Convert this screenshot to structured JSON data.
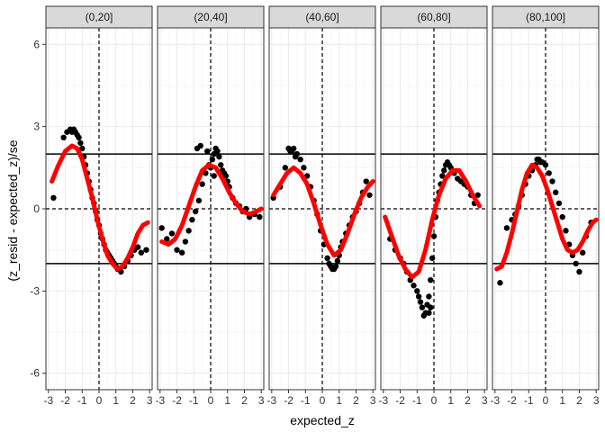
{
  "chart_data": {
    "type": "scatter",
    "xlabel": "expected_z",
    "ylabel": "(z_resid - expected_z)/se",
    "xlim": [
      -3.15,
      3.15
    ],
    "ylim": [
      -6.6,
      6.6
    ],
    "x_ticks": [
      -3,
      -2,
      -1,
      0,
      1,
      2,
      3
    ],
    "y_ticks": [
      6,
      3,
      0,
      -3,
      -6
    ],
    "hlines_solid": [
      2,
      -2
    ],
    "hline_dashed": 0,
    "vline_dashed": 0,
    "grid": true,
    "point_color": "#000000",
    "curve_color": "#ff0000",
    "strip_color": "#d9d9d9",
    "panels": [
      {
        "label": "(0,20]",
        "curve": {
          "x": [
            -2.8,
            -2.4,
            -2.0,
            -1.6,
            -1.3,
            -1.0,
            -0.7,
            -0.4,
            -0.1,
            0.2,
            0.5,
            0.8,
            1.1,
            1.4,
            1.7,
            2.0,
            2.3,
            2.6,
            2.9
          ],
          "y": [
            1.0,
            1.6,
            2.1,
            2.3,
            2.2,
            1.8,
            1.1,
            0.4,
            -0.4,
            -1.1,
            -1.7,
            -2.0,
            -2.2,
            -2.1,
            -1.8,
            -1.4,
            -0.9,
            -0.6,
            -0.5
          ]
        },
        "points": {
          "x": [
            -2.7,
            -2.1,
            -1.9,
            -1.7,
            -1.6,
            -1.5,
            -1.4,
            -1.3,
            -1.2,
            -1.1,
            -1.0,
            -0.9,
            -0.8,
            -0.7,
            -0.6,
            -0.5,
            -0.4,
            -0.3,
            -0.2,
            -0.1,
            0.0,
            0.1,
            0.2,
            0.3,
            0.4,
            0.5,
            0.6,
            0.7,
            0.8,
            0.9,
            1.0,
            1.1,
            1.2,
            1.3,
            1.5,
            1.7,
            1.9,
            2.1,
            2.3,
            2.5,
            2.8
          ],
          "y": [
            0.4,
            2.6,
            2.8,
            2.9,
            2.8,
            2.9,
            2.8,
            2.7,
            2.6,
            2.4,
            2.2,
            1.9,
            1.6,
            1.3,
            1.0,
            0.7,
            0.4,
            0.2,
            -0.1,
            -0.4,
            -0.6,
            -0.9,
            -1.1,
            -1.3,
            -1.5,
            -1.6,
            -1.7,
            -1.8,
            -1.9,
            -2.0,
            -2.1,
            -2.2,
            -2.2,
            -2.3,
            -2.1,
            -1.9,
            -1.7,
            -1.5,
            -1.4,
            -1.6,
            -1.5
          ]
        }
      },
      {
        "label": "(20,40]",
        "curve": {
          "x": [
            -2.9,
            -2.5,
            -2.1,
            -1.7,
            -1.3,
            -0.9,
            -0.5,
            -0.1,
            0.3,
            0.7,
            1.1,
            1.5,
            1.9,
            2.3,
            2.7,
            3.0
          ],
          "y": [
            -1.2,
            -1.3,
            -1.1,
            -0.6,
            0.1,
            0.8,
            1.4,
            1.6,
            1.5,
            1.1,
            0.6,
            0.2,
            -0.1,
            -0.2,
            -0.1,
            0.0
          ]
        },
        "points": {
          "x": [
            -2.9,
            -2.6,
            -2.3,
            -2.0,
            -1.7,
            -1.5,
            -1.3,
            -1.1,
            -0.9,
            -0.7,
            -0.5,
            -0.3,
            -0.1,
            0.0,
            0.1,
            0.2,
            0.3,
            0.4,
            0.5,
            0.6,
            0.7,
            0.8,
            0.9,
            1.0,
            1.1,
            1.3,
            1.5,
            1.7,
            1.9,
            2.1,
            2.3,
            2.6,
            2.9,
            -0.8,
            -0.6,
            -0.2,
            0.2
          ],
          "y": [
            -0.7,
            -1.1,
            -0.9,
            -1.5,
            -1.6,
            -1.2,
            -0.8,
            -0.4,
            -0.1,
            0.3,
            0.9,
            1.3,
            1.6,
            1.5,
            1.8,
            2.0,
            2.2,
            2.1,
            1.9,
            1.6,
            1.4,
            1.3,
            1.2,
            1.0,
            0.8,
            0.4,
            0.2,
            0.1,
            -0.1,
            0.0,
            -0.3,
            -0.2,
            -0.3,
            2.2,
            2.3,
            2.1,
            1.2
          ]
        }
      },
      {
        "label": "(40,60]",
        "curve": {
          "x": [
            -2.9,
            -2.5,
            -2.1,
            -1.7,
            -1.3,
            -0.9,
            -0.5,
            -0.1,
            0.3,
            0.7,
            1.1,
            1.5,
            1.9,
            2.3,
            2.7,
            3.0
          ],
          "y": [
            0.5,
            0.9,
            1.3,
            1.5,
            1.3,
            0.9,
            0.2,
            -0.6,
            -1.3,
            -1.7,
            -1.5,
            -0.9,
            -0.2,
            0.4,
            0.8,
            1.0
          ]
        },
        "points": {
          "x": [
            -2.9,
            -2.5,
            -2.2,
            -1.9,
            -1.7,
            -1.5,
            -1.3,
            -1.1,
            -0.9,
            -0.7,
            -0.5,
            -0.3,
            -0.1,
            0.1,
            0.3,
            0.4,
            0.5,
            0.6,
            0.7,
            0.8,
            0.9,
            1.0,
            1.1,
            1.2,
            1.4,
            1.6,
            1.8,
            2.0,
            2.2,
            2.4,
            2.6,
            2.8,
            -2.0,
            -1.8,
            -1.6
          ],
          "y": [
            0.4,
            0.8,
            1.5,
            2.1,
            2.2,
            2.0,
            1.8,
            1.5,
            1.2,
            0.8,
            0.3,
            -0.2,
            -0.8,
            -1.3,
            -1.8,
            -2.0,
            -2.1,
            -2.2,
            -2.2,
            -2.1,
            -1.9,
            -1.7,
            -1.4,
            -1.2,
            -0.9,
            -0.6,
            -0.3,
            -0.1,
            0.2,
            0.6,
            1.0,
            0.5,
            2.2,
            2.1,
            1.9
          ]
        }
      },
      {
        "label": "(60,80]",
        "curve": {
          "x": [
            -2.9,
            -2.5,
            -2.1,
            -1.7,
            -1.3,
            -0.9,
            -0.5,
            -0.1,
            0.3,
            0.7,
            1.1,
            1.5,
            1.9,
            2.3,
            2.7
          ],
          "y": [
            -0.3,
            -1.0,
            -1.7,
            -2.2,
            -2.5,
            -2.3,
            -1.5,
            -0.4,
            0.5,
            1.1,
            1.4,
            1.4,
            1.0,
            0.5,
            0.1
          ]
        },
        "points": {
          "x": [
            -2.6,
            -2.3,
            -2.0,
            -1.8,
            -1.6,
            -1.4,
            -1.2,
            -1.0,
            -0.9,
            -0.8,
            -0.7,
            -0.6,
            -0.5,
            -0.4,
            -0.3,
            -0.2,
            -0.1,
            0.0,
            0.1,
            0.2,
            0.3,
            0.4,
            0.5,
            0.6,
            0.7,
            0.8,
            0.9,
            1.0,
            1.2,
            1.4,
            1.6,
            1.8,
            2.0,
            2.2,
            2.4,
            2.6,
            -0.3,
            -0.2
          ],
          "y": [
            -1.1,
            -1.5,
            -1.8,
            -2.0,
            -2.3,
            -2.6,
            -2.8,
            -3.0,
            -3.2,
            -3.4,
            -3.6,
            -3.9,
            -3.8,
            -3.5,
            -3.2,
            -2.6,
            -1.8,
            -1.0,
            -0.3,
            0.3,
            0.6,
            0.9,
            1.2,
            1.4,
            1.6,
            1.7,
            1.6,
            1.5,
            1.3,
            1.1,
            1.0,
            0.9,
            0.8,
            0.5,
            0.2,
            0.5,
            -3.8,
            -3.6
          ]
        }
      },
      {
        "label": "(80,100]",
        "curve": {
          "x": [
            -2.9,
            -2.6,
            -2.3,
            -2.0,
            -1.7,
            -1.4,
            -1.1,
            -0.8,
            -0.5,
            -0.2,
            0.1,
            0.4,
            0.7,
            1.0,
            1.3,
            1.6,
            1.9,
            2.2,
            2.5,
            2.8,
            3.0
          ],
          "y": [
            -2.2,
            -2.1,
            -1.6,
            -0.9,
            -0.1,
            0.7,
            1.3,
            1.6,
            1.5,
            1.2,
            0.7,
            0.1,
            -0.5,
            -1.1,
            -1.5,
            -1.6,
            -1.5,
            -1.2,
            -0.8,
            -0.5,
            -0.4
          ]
        },
        "points": {
          "x": [
            -2.7,
            -2.3,
            -2.0,
            -1.8,
            -1.6,
            -1.4,
            -1.2,
            -1.0,
            -0.8,
            -0.6,
            -0.4,
            -0.2,
            0.0,
            0.2,
            0.4,
            0.6,
            0.8,
            1.0,
            1.2,
            1.4,
            1.6,
            1.8,
            2.0,
            2.2,
            2.4,
            2.7,
            -0.5,
            -0.3
          ],
          "y": [
            -2.7,
            -0.7,
            -0.4,
            -0.2,
            0.1,
            0.5,
            0.9,
            1.2,
            1.4,
            1.6,
            1.8,
            1.7,
            1.6,
            1.3,
            1.0,
            0.6,
            0.2,
            -0.3,
            -0.8,
            -1.3,
            -1.7,
            -2.0,
            -2.3,
            -1.6,
            -1.0,
            -0.5,
            1.8,
            1.7
          ]
        }
      }
    ]
  }
}
